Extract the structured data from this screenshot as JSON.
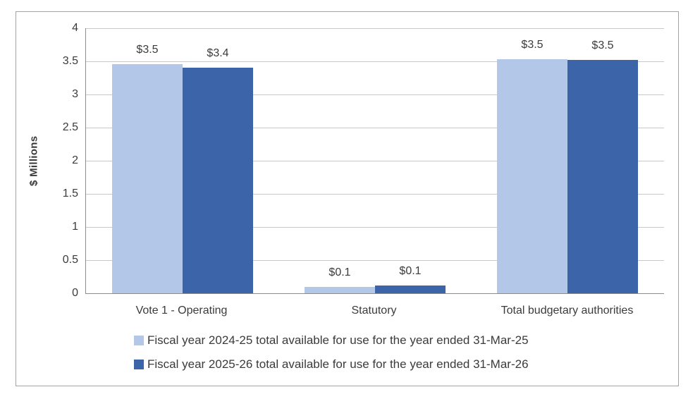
{
  "chart_data": {
    "type": "bar",
    "title": "",
    "ylabel": "$ Millions",
    "xlabel": "",
    "ylim": [
      0,
      4
    ],
    "ytick_step": 0.5,
    "grid": true,
    "legend_position": "bottom-left",
    "grid_color": "#c8c8c8",
    "axis_color": "#8c8c8c",
    "frame_border_color": "#a3a3a3",
    "text_color": "#3b3b3b",
    "categories": [
      "Vote 1 - Operating",
      "Statutory",
      "Total budgetary authorities"
    ],
    "series": [
      {
        "name": "Fiscal year 2024-25 total available for use for the year ended 31-Mar-25",
        "color": "#b3c8e8",
        "values": [
          3.46,
          0.1,
          3.53
        ],
        "data_labels": [
          "$3.5",
          "$0.1",
          "$3.5"
        ]
      },
      {
        "name": "Fiscal year 2025-26 total available for use for the year ended 31-Mar-26",
        "color": "#3c64a8",
        "values": [
          3.4,
          0.12,
          3.52
        ],
        "data_labels": [
          "$3.4",
          "$0.1",
          "$3.5"
        ]
      }
    ]
  }
}
